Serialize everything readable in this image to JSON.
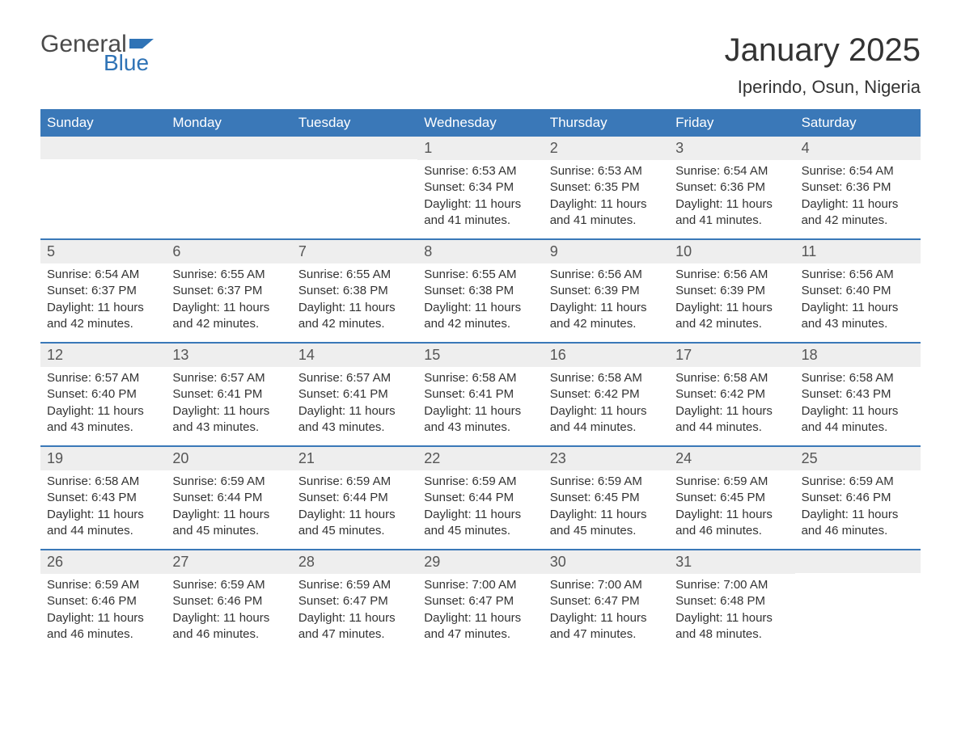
{
  "brand": {
    "word1": "General",
    "word2": "Blue",
    "flag_color": "#2f73b6"
  },
  "title": "January 2025",
  "location": "Iperindo, Osun, Nigeria",
  "colors": {
    "header_bg": "#3a78b8",
    "header_text": "#ffffff",
    "daynum_bg": "#eeeeee",
    "border": "#3a78b8",
    "body_text": "#333333"
  },
  "weekdays": [
    "Sunday",
    "Monday",
    "Tuesday",
    "Wednesday",
    "Thursday",
    "Friday",
    "Saturday"
  ],
  "weeks": [
    [
      null,
      null,
      null,
      {
        "n": "1",
        "sunrise": "6:53 AM",
        "sunset": "6:34 PM",
        "daylight": "11 hours and 41 minutes."
      },
      {
        "n": "2",
        "sunrise": "6:53 AM",
        "sunset": "6:35 PM",
        "daylight": "11 hours and 41 minutes."
      },
      {
        "n": "3",
        "sunrise": "6:54 AM",
        "sunset": "6:36 PM",
        "daylight": "11 hours and 41 minutes."
      },
      {
        "n": "4",
        "sunrise": "6:54 AM",
        "sunset": "6:36 PM",
        "daylight": "11 hours and 42 minutes."
      }
    ],
    [
      {
        "n": "5",
        "sunrise": "6:54 AM",
        "sunset": "6:37 PM",
        "daylight": "11 hours and 42 minutes."
      },
      {
        "n": "6",
        "sunrise": "6:55 AM",
        "sunset": "6:37 PM",
        "daylight": "11 hours and 42 minutes."
      },
      {
        "n": "7",
        "sunrise": "6:55 AM",
        "sunset": "6:38 PM",
        "daylight": "11 hours and 42 minutes."
      },
      {
        "n": "8",
        "sunrise": "6:55 AM",
        "sunset": "6:38 PM",
        "daylight": "11 hours and 42 minutes."
      },
      {
        "n": "9",
        "sunrise": "6:56 AM",
        "sunset": "6:39 PM",
        "daylight": "11 hours and 42 minutes."
      },
      {
        "n": "10",
        "sunrise": "6:56 AM",
        "sunset": "6:39 PM",
        "daylight": "11 hours and 42 minutes."
      },
      {
        "n": "11",
        "sunrise": "6:56 AM",
        "sunset": "6:40 PM",
        "daylight": "11 hours and 43 minutes."
      }
    ],
    [
      {
        "n": "12",
        "sunrise": "6:57 AM",
        "sunset": "6:40 PM",
        "daylight": "11 hours and 43 minutes."
      },
      {
        "n": "13",
        "sunrise": "6:57 AM",
        "sunset": "6:41 PM",
        "daylight": "11 hours and 43 minutes."
      },
      {
        "n": "14",
        "sunrise": "6:57 AM",
        "sunset": "6:41 PM",
        "daylight": "11 hours and 43 minutes."
      },
      {
        "n": "15",
        "sunrise": "6:58 AM",
        "sunset": "6:41 PM",
        "daylight": "11 hours and 43 minutes."
      },
      {
        "n": "16",
        "sunrise": "6:58 AM",
        "sunset": "6:42 PM",
        "daylight": "11 hours and 44 minutes."
      },
      {
        "n": "17",
        "sunrise": "6:58 AM",
        "sunset": "6:42 PM",
        "daylight": "11 hours and 44 minutes."
      },
      {
        "n": "18",
        "sunrise": "6:58 AM",
        "sunset": "6:43 PM",
        "daylight": "11 hours and 44 minutes."
      }
    ],
    [
      {
        "n": "19",
        "sunrise": "6:58 AM",
        "sunset": "6:43 PM",
        "daylight": "11 hours and 44 minutes."
      },
      {
        "n": "20",
        "sunrise": "6:59 AM",
        "sunset": "6:44 PM",
        "daylight": "11 hours and 45 minutes."
      },
      {
        "n": "21",
        "sunrise": "6:59 AM",
        "sunset": "6:44 PM",
        "daylight": "11 hours and 45 minutes."
      },
      {
        "n": "22",
        "sunrise": "6:59 AM",
        "sunset": "6:44 PM",
        "daylight": "11 hours and 45 minutes."
      },
      {
        "n": "23",
        "sunrise": "6:59 AM",
        "sunset": "6:45 PM",
        "daylight": "11 hours and 45 minutes."
      },
      {
        "n": "24",
        "sunrise": "6:59 AM",
        "sunset": "6:45 PM",
        "daylight": "11 hours and 46 minutes."
      },
      {
        "n": "25",
        "sunrise": "6:59 AM",
        "sunset": "6:46 PM",
        "daylight": "11 hours and 46 minutes."
      }
    ],
    [
      {
        "n": "26",
        "sunrise": "6:59 AM",
        "sunset": "6:46 PM",
        "daylight": "11 hours and 46 minutes."
      },
      {
        "n": "27",
        "sunrise": "6:59 AM",
        "sunset": "6:46 PM",
        "daylight": "11 hours and 46 minutes."
      },
      {
        "n": "28",
        "sunrise": "6:59 AM",
        "sunset": "6:47 PM",
        "daylight": "11 hours and 47 minutes."
      },
      {
        "n": "29",
        "sunrise": "7:00 AM",
        "sunset": "6:47 PM",
        "daylight": "11 hours and 47 minutes."
      },
      {
        "n": "30",
        "sunrise": "7:00 AM",
        "sunset": "6:47 PM",
        "daylight": "11 hours and 47 minutes."
      },
      {
        "n": "31",
        "sunrise": "7:00 AM",
        "sunset": "6:48 PM",
        "daylight": "11 hours and 48 minutes."
      },
      null
    ]
  ],
  "labels": {
    "sunrise": "Sunrise: ",
    "sunset": "Sunset: ",
    "daylight": "Daylight: "
  }
}
